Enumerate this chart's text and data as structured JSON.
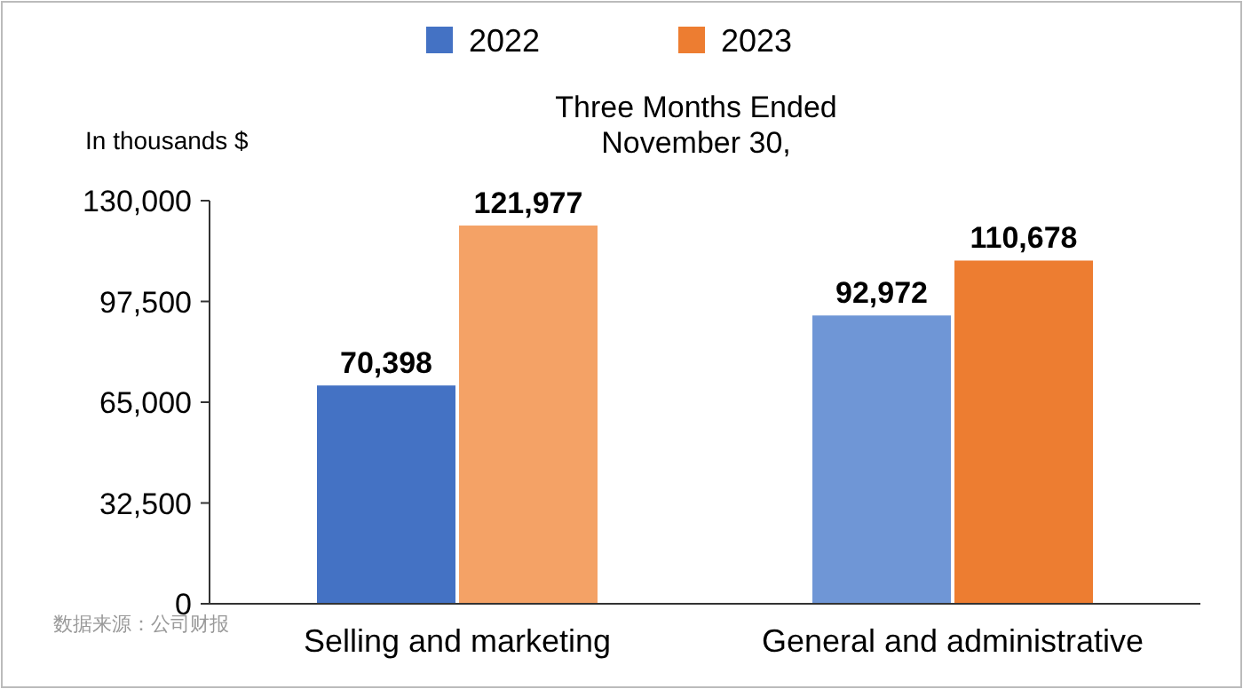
{
  "chart_data": {
    "type": "bar",
    "title": "Three Months Ended\nNovember 30,",
    "ylabel": "In thousands $",
    "categories": [
      "Selling and marketing",
      "General and administrative"
    ],
    "series": [
      {
        "name": "2022",
        "color": "#4472c4",
        "colors": [
          "#4472c4",
          "#6f96d6"
        ],
        "values": [
          70398,
          92972
        ],
        "value_labels": [
          "70,398",
          "92,972"
        ]
      },
      {
        "name": "2023",
        "color": "#ed7d31",
        "colors": [
          "#f4a266",
          "#ed7d31"
        ],
        "values": [
          121977,
          110678
        ],
        "value_labels": [
          "121,977",
          "110,678"
        ]
      }
    ],
    "ylim": [
      0,
      130000
    ],
    "yticks": [
      {
        "value": 0,
        "label": "0"
      },
      {
        "value": 32500,
        "label": "32,500"
      },
      {
        "value": 65000,
        "label": "65,000"
      },
      {
        "value": 97500,
        "label": "97,500"
      },
      {
        "value": 130000,
        "label": "130,000"
      }
    ],
    "legend": "top",
    "grid": false,
    "annotations": [
      "数据来源：公司财报"
    ]
  }
}
